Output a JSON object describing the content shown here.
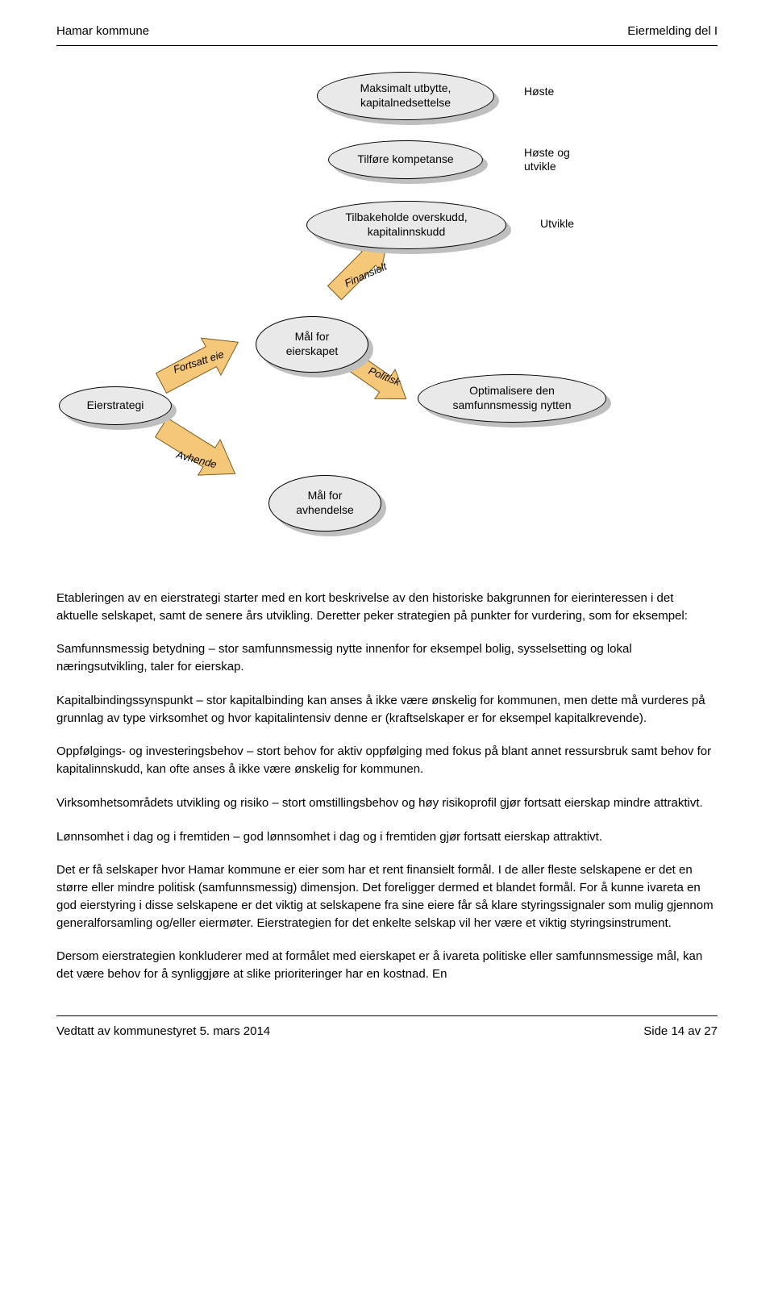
{
  "header": {
    "left": "Hamar kommune",
    "right": "Eiermelding del I"
  },
  "footer": {
    "left": "Vedtatt av kommunestyret 5. mars 2014",
    "right": "Side 14 av 27"
  },
  "diagram": {
    "n1": "Maksimalt utbytte,\nkapitalnedsettelse",
    "n1_label": "Høste",
    "n2": "Tilføre kompetanse",
    "n2_label": "Høste og\nutvikle",
    "n3": "Tilbakeholde overskudd,\nkapitalinnskudd",
    "n3_label": "Utvikle",
    "n4": "Mål for\neierskapet",
    "n5": "Optimalisere den\nsamfunnsmessig nytten",
    "n6": "Mål for\navhendelse",
    "n7": "Eierstrategi",
    "arrow_fin": "Finansielt",
    "arrow_pol": "Politisk",
    "arrow_fortsatt": "Fortsatt eie",
    "arrow_avhende": "Avhende",
    "ellipse_fill": "#e9e9e9",
    "ellipse_stroke": "#000000",
    "shadow_fill": "#bfbfbf",
    "arrow_fill": "#f5c879",
    "arrow_stroke": "#7a5b1e"
  },
  "body": {
    "p1": "Etableringen av en eierstrategi starter med en kort beskrivelse av den historiske bakgrunnen for eierinteressen i det aktuelle selskapet, samt de senere års utvikling. Deretter peker strategien på punkter for vurdering, som for eksempel:",
    "p2": "Samfunnsmessig betydning – stor samfunnsmessig nytte innenfor for eksempel bolig, sysselsetting og lokal næringsutvikling, taler for eierskap.",
    "p3": "Kapitalbindingssynspunkt – stor kapitalbinding kan anses å ikke være ønskelig for kommunen, men dette må vurderes på grunnlag av type virksomhet og hvor kapitalintensiv denne er (kraftselskaper er for eksempel kapitalkrevende).",
    "p4": "Oppfølgings- og investeringsbehov – stort behov for aktiv oppfølging med fokus på blant annet ressursbruk samt behov for kapitalinnskudd, kan ofte anses å ikke være ønskelig for kommunen.",
    "p5": "Virksomhetsområdets utvikling og risiko – stort omstillingsbehov og høy risikoprofil gjør fortsatt eierskap mindre attraktivt.",
    "p6": "Lønnsomhet i dag og i fremtiden – god lønnsomhet i dag og i fremtiden gjør fortsatt eierskap attraktivt.",
    "p7": "Det er få selskaper hvor Hamar kommune er eier som har et rent finansielt formål. I de aller fleste selskapene er det en større eller mindre politisk (samfunnsmessig) dimensjon. Det foreligger dermed et blandet formål. For å kunne ivareta en god eierstyring i disse selskapene er det viktig at selskapene fra sine eiere får så klare styringssignaler som mulig gjennom generalforsamling og/eller eiermøter. Eierstrategien for det enkelte selskap vil her være et viktig styringsinstrument.",
    "p8": "Dersom eierstrategien konkluderer med at formålet med eierskapet er å ivareta politiske eller samfunnsmessige mål, kan det være behov for å synliggjøre at slike prioriteringer har en kostnad. En"
  }
}
